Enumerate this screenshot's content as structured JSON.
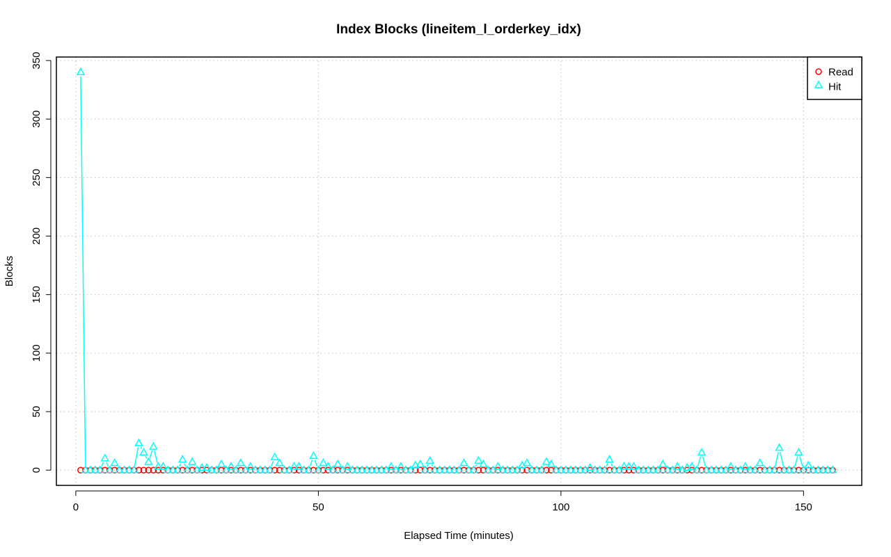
{
  "chart_data": {
    "type": "line",
    "title": "Index Blocks (lineitem_l_orderkey_idx)",
    "xlabel": "Elapsed Time (minutes)",
    "ylabel": "Blocks",
    "xlim": [
      -4,
      162
    ],
    "ylim": [
      -13,
      353
    ],
    "x_ticks": [
      0,
      50,
      100,
      150
    ],
    "y_ticks": [
      0,
      50,
      100,
      150,
      200,
      250,
      300,
      350
    ],
    "grid": true,
    "legend_position": "top-right",
    "series": [
      {
        "name": "Read",
        "color": "#ff0000",
        "marker": "circle",
        "x": [
          1,
          2,
          3,
          4,
          5,
          6,
          7,
          8,
          9,
          10,
          11,
          12,
          13,
          14,
          15,
          16,
          17,
          18,
          19,
          20,
          21,
          22,
          23,
          24,
          25,
          26,
          27,
          28,
          29,
          30,
          31,
          32,
          33,
          34,
          35,
          36,
          37,
          38,
          39,
          40,
          41,
          42,
          43,
          44,
          45,
          46,
          47,
          48,
          49,
          50,
          51,
          52,
          53,
          54,
          55,
          56,
          57,
          58,
          59,
          60,
          61,
          62,
          63,
          64,
          65,
          66,
          67,
          68,
          69,
          70,
          71,
          72,
          73,
          74,
          75,
          76,
          77,
          78,
          79,
          80,
          81,
          82,
          83,
          84,
          85,
          86,
          87,
          88,
          89,
          90,
          91,
          92,
          93,
          94,
          95,
          96,
          97,
          98,
          99,
          100,
          101,
          102,
          103,
          104,
          105,
          106,
          107,
          108,
          109,
          110,
          111,
          112,
          113,
          114,
          115,
          116,
          117,
          118,
          119,
          120,
          121,
          122,
          123,
          124,
          125,
          126,
          127,
          128,
          129,
          130,
          131,
          132,
          133,
          134,
          135,
          136,
          137,
          138,
          139,
          140,
          141,
          142,
          143,
          144,
          145,
          146,
          147,
          148,
          149,
          150,
          151,
          152,
          153,
          154,
          155,
          156
        ],
        "values": [
          0,
          0,
          0,
          0,
          0,
          0,
          0,
          0,
          0,
          0,
          0,
          0,
          0,
          0,
          0,
          0,
          0,
          0,
          0,
          0,
          0,
          0,
          0,
          0,
          0,
          0,
          0,
          0,
          0,
          0,
          0,
          0,
          0,
          0,
          0,
          0,
          0,
          0,
          0,
          0,
          0,
          0,
          0,
          0,
          0,
          0,
          0,
          0,
          0,
          0,
          0,
          0,
          0,
          0,
          0,
          0,
          0,
          0,
          0,
          0,
          0,
          0,
          0,
          0,
          0,
          0,
          0,
          0,
          0,
          0,
          0,
          0,
          0,
          0,
          0,
          0,
          0,
          0,
          0,
          0,
          0,
          0,
          0,
          0,
          0,
          0,
          0,
          0,
          0,
          0,
          0,
          0,
          0,
          0,
          0,
          0,
          0,
          0,
          0,
          0,
          0,
          0,
          0,
          0,
          0,
          0,
          0,
          0,
          0,
          0,
          0,
          0,
          0,
          0,
          0,
          0,
          0,
          0,
          0,
          0,
          0,
          0,
          0,
          0,
          0,
          0,
          0,
          0,
          0,
          0,
          0,
          0,
          0,
          0,
          0,
          0,
          0,
          0,
          0,
          0,
          0,
          0,
          0,
          0,
          0,
          0,
          0,
          0,
          0,
          0,
          0,
          0,
          0,
          0,
          0,
          0
        ]
      },
      {
        "name": "Hit",
        "color": "#00ffff",
        "marker": "triangle",
        "x": [
          1,
          2,
          3,
          4,
          5,
          6,
          7,
          8,
          9,
          10,
          11,
          12,
          13,
          14,
          15,
          16,
          17,
          18,
          19,
          20,
          21,
          22,
          23,
          24,
          25,
          26,
          27,
          28,
          29,
          30,
          31,
          32,
          33,
          34,
          35,
          36,
          37,
          38,
          39,
          40,
          41,
          42,
          43,
          44,
          45,
          46,
          47,
          48,
          49,
          50,
          51,
          52,
          53,
          54,
          55,
          56,
          57,
          58,
          59,
          60,
          61,
          62,
          63,
          64,
          65,
          66,
          67,
          68,
          69,
          70,
          71,
          72,
          73,
          74,
          75,
          76,
          77,
          78,
          79,
          80,
          81,
          82,
          83,
          84,
          85,
          86,
          87,
          88,
          89,
          90,
          91,
          92,
          93,
          94,
          95,
          96,
          97,
          98,
          99,
          100,
          101,
          102,
          103,
          104,
          105,
          106,
          107,
          108,
          109,
          110,
          111,
          112,
          113,
          114,
          115,
          116,
          117,
          118,
          119,
          120,
          121,
          122,
          123,
          124,
          125,
          126,
          127,
          128,
          129,
          130,
          131,
          132,
          133,
          134,
          135,
          136,
          137,
          138,
          139,
          140,
          141,
          142,
          143,
          144,
          145,
          146,
          147,
          148,
          149,
          150,
          151,
          152,
          153,
          154,
          155,
          156
        ],
        "values": [
          340,
          0,
          0,
          0,
          0,
          10,
          0,
          6,
          0,
          0,
          0,
          0,
          23,
          15,
          7,
          20,
          3,
          3,
          0,
          0,
          0,
          9,
          0,
          7,
          0,
          2,
          2,
          0,
          0,
          5,
          0,
          3,
          0,
          6,
          0,
          3,
          0,
          0,
          0,
          0,
          11,
          6,
          0,
          0,
          3,
          3,
          0,
          0,
          12,
          0,
          6,
          3,
          0,
          5,
          0,
          3,
          0,
          0,
          0,
          0,
          0,
          0,
          0,
          0,
          3,
          0,
          3,
          0,
          0,
          4,
          5,
          0,
          8,
          0,
          0,
          0,
          0,
          0,
          0,
          6,
          0,
          0,
          8,
          5,
          0,
          0,
          3,
          0,
          0,
          0,
          0,
          4,
          6,
          0,
          0,
          0,
          7,
          5,
          0,
          0,
          0,
          0,
          0,
          0,
          0,
          2,
          0,
          0,
          0,
          9,
          0,
          0,
          3,
          3,
          3,
          0,
          0,
          0,
          0,
          0,
          5,
          0,
          0,
          3,
          0,
          2,
          3,
          0,
          15,
          0,
          0,
          0,
          0,
          0,
          3,
          0,
          0,
          3,
          0,
          0,
          6,
          0,
          0,
          0,
          19,
          0,
          0,
          0,
          15,
          0,
          4,
          0,
          0,
          0,
          0,
          0
        ]
      }
    ]
  }
}
